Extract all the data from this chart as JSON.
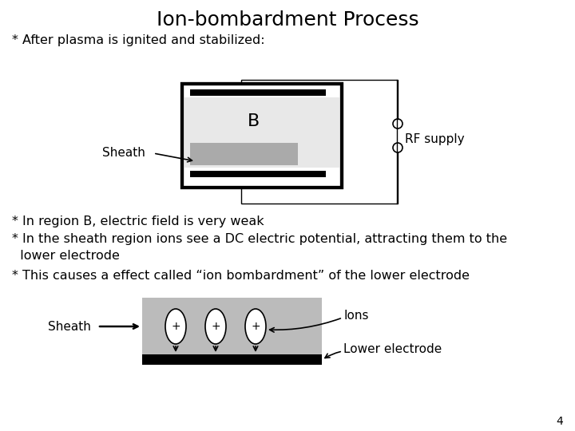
{
  "title": "Ion-bombardment Process",
  "title_fontsize": 18,
  "background_color": "#ffffff",
  "text_color": "#000000",
  "subtitle": "* After plasma is ignited and stabilized:",
  "subtitle_fontsize": 11.5,
  "line1": "* In region B, electric field is very weak",
  "line1_fontsize": 11.5,
  "line2": "* In the sheath region ions see a DC electric potential, attracting them to the\n  lower electrode",
  "line2_fontsize": 11.5,
  "line3": "* This causes a effect called “ion bombardment” of the lower electrode",
  "line3_fontsize": 11.5,
  "page_num": "4"
}
